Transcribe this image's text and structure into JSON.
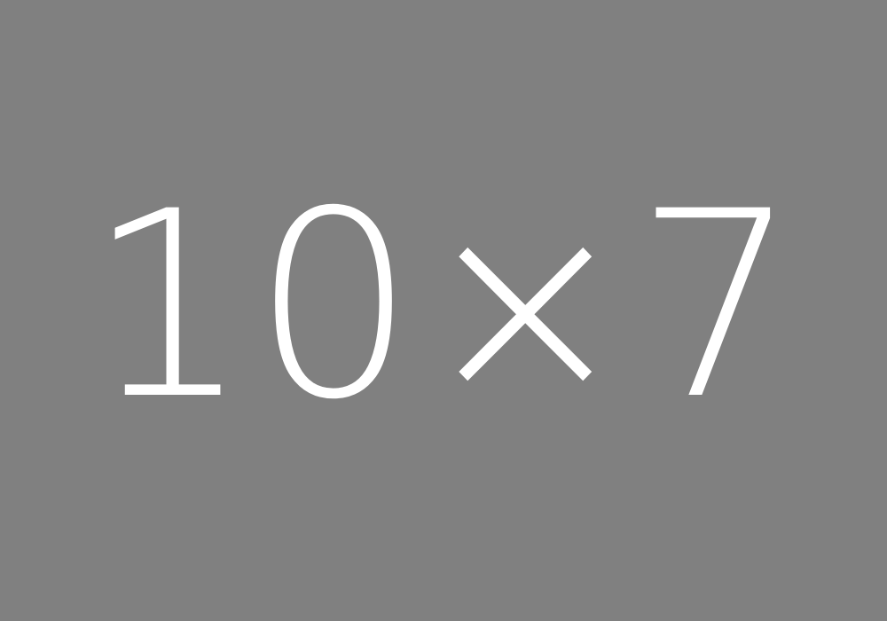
{
  "placeholder": {
    "text": "10×7",
    "background_color": "#808080",
    "text_color": "#ffffff"
  }
}
